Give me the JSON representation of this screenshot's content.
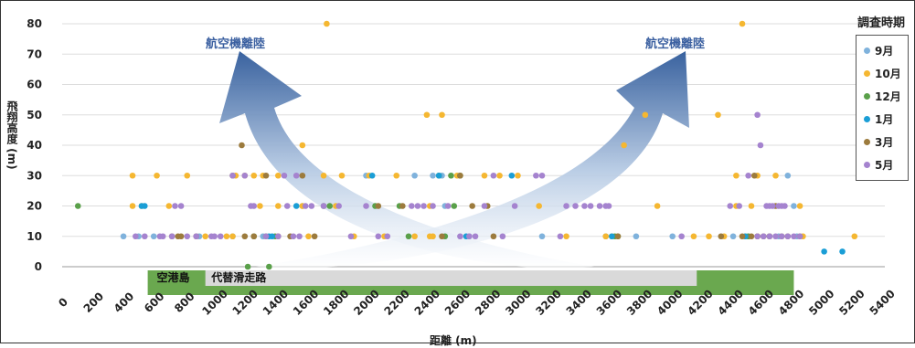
{
  "chart_data": {
    "type": "scatter",
    "title": "",
    "xlabel": "距離 (m)",
    "ylabel": "飛翔高度 (m)",
    "xlim": [
      0,
      5400
    ],
    "ylim": [
      0,
      80
    ],
    "x_ticks": [
      0,
      200,
      400,
      600,
      800,
      1000,
      1200,
      1400,
      1600,
      1800,
      2000,
      2200,
      2400,
      2600,
      2800,
      3000,
      3200,
      3400,
      3600,
      3800,
      4000,
      4200,
      4400,
      4600,
      4800,
      5000,
      5200,
      5400
    ],
    "y_ticks": [
      0,
      10,
      20,
      30,
      40,
      50,
      60,
      70,
      80
    ],
    "grid": "horizontal",
    "legend_title": "調査時期",
    "legend_position": "right",
    "annotations": {
      "arrow_left_label": "航空機離陸",
      "arrow_right_label": "航空機離陸",
      "airport_label": "空港島",
      "runway_label": "代替滑走路"
    },
    "series": [
      {
        "name": "9月",
        "color": "#7fb2dc",
        "points": [
          [
            380,
            10
          ],
          [
            480,
            10
          ],
          [
            580,
            10
          ],
          [
            880,
            10
          ],
          [
            1100,
            10
          ],
          [
            1300,
            10
          ],
          [
            1560,
            20
          ],
          [
            1980,
            30
          ],
          [
            2300,
            30
          ],
          [
            2420,
            30
          ],
          [
            2480,
            30
          ],
          [
            2500,
            20
          ],
          [
            2660,
            10
          ],
          [
            3140,
            10
          ],
          [
            3560,
            10
          ],
          [
            3760,
            10
          ],
          [
            4000,
            10
          ],
          [
            4400,
            10
          ],
          [
            4500,
            10
          ],
          [
            4760,
            30
          ],
          [
            4800,
            20
          ],
          [
            4820,
            10
          ],
          [
            4700,
            10
          ]
        ]
      },
      {
        "name": "10月",
        "color": "#f5b731",
        "points": [
          [
            440,
            30
          ],
          [
            600,
            30
          ],
          [
            800,
            30
          ],
          [
            1120,
            30
          ],
          [
            1180,
            30
          ],
          [
            1240,
            30
          ],
          [
            1300,
            30
          ],
          [
            1400,
            30
          ],
          [
            1700,
            30
          ],
          [
            1560,
            40
          ],
          [
            1720,
            80
          ],
          [
            1280,
            20
          ],
          [
            1400,
            20
          ],
          [
            1560,
            20
          ],
          [
            1780,
            20
          ],
          [
            2180,
            30
          ],
          [
            2380,
            50
          ],
          [
            2480,
            50
          ],
          [
            2400,
            20
          ],
          [
            2580,
            30
          ],
          [
            2760,
            30
          ],
          [
            2860,
            30
          ],
          [
            2980,
            30
          ],
          [
            3120,
            20
          ],
          [
            3300,
            10
          ],
          [
            3680,
            40
          ],
          [
            3820,
            50
          ],
          [
            3900,
            20
          ],
          [
            4140,
            10
          ],
          [
            4300,
            50
          ],
          [
            4460,
            80
          ],
          [
            4420,
            20
          ],
          [
            4520,
            20
          ],
          [
            4560,
            10
          ],
          [
            4680,
            30
          ],
          [
            4840,
            20
          ],
          [
            4860,
            10
          ],
          [
            5200,
            10
          ],
          [
            440,
            20
          ],
          [
            500,
            20
          ],
          [
            1100,
            10
          ],
          [
            1600,
            10
          ],
          [
            1900,
            10
          ],
          [
            2100,
            10
          ],
          [
            2300,
            10
          ],
          [
            2400,
            10
          ],
          [
            3560,
            10
          ],
          [
            3600,
            10
          ],
          [
            4240,
            10
          ],
          [
            4340,
            10
          ],
          [
            4480,
            10
          ],
          [
            4420,
            30
          ],
          [
            4560,
            30
          ],
          [
            680,
            20
          ],
          [
            920,
            10
          ],
          [
            1060,
            10
          ],
          [
            1820,
            30
          ],
          [
            2000,
            30
          ],
          [
            2420,
            10
          ]
        ]
      },
      {
        "name": "12月",
        "color": "#5aa04a",
        "points": [
          [
            80,
            20
          ],
          [
            1340,
            0
          ],
          [
            1200,
            0
          ],
          [
            1240,
            10
          ],
          [
            1320,
            10
          ],
          [
            1380,
            10
          ],
          [
            1700,
            20
          ],
          [
            1740,
            20
          ],
          [
            2040,
            20
          ],
          [
            2200,
            20
          ],
          [
            2260,
            10
          ],
          [
            2460,
            30
          ],
          [
            2540,
            30
          ],
          [
            2600,
            30
          ],
          [
            2500,
            10
          ],
          [
            2560,
            20
          ],
          [
            3620,
            10
          ],
          [
            3640,
            10
          ],
          [
            4500,
            10
          ],
          [
            4640,
            10
          ]
        ]
      },
      {
        "name": "1月",
        "color": "#1a9ed6",
        "points": [
          [
            500,
            20
          ],
          [
            520,
            20
          ],
          [
            1340,
            10
          ],
          [
            1360,
            10
          ],
          [
            1520,
            20
          ],
          [
            2020,
            30
          ],
          [
            2460,
            30
          ],
          [
            2640,
            10
          ],
          [
            2940,
            30
          ],
          [
            3600,
            10
          ],
          [
            4480,
            10
          ],
          [
            5000,
            5
          ],
          [
            5120,
            5
          ]
        ]
      },
      {
        "name": "3月",
        "color": "#9c7b3d",
        "points": [
          [
            700,
            10
          ],
          [
            740,
            10
          ],
          [
            760,
            10
          ],
          [
            860,
            10
          ],
          [
            1100,
            30
          ],
          [
            1160,
            40
          ],
          [
            1180,
            10
          ],
          [
            1240,
            10
          ],
          [
            1320,
            30
          ],
          [
            1400,
            10
          ],
          [
            1480,
            10
          ],
          [
            1560,
            30
          ],
          [
            1640,
            10
          ],
          [
            2060,
            20
          ],
          [
            2220,
            20
          ],
          [
            2480,
            10
          ],
          [
            2600,
            30
          ],
          [
            2680,
            20
          ],
          [
            2780,
            20
          ],
          [
            2820,
            10
          ],
          [
            3640,
            10
          ],
          [
            4320,
            10
          ],
          [
            4460,
            10
          ],
          [
            4520,
            10
          ],
          [
            4560,
            10
          ],
          [
            4600,
            10
          ],
          [
            4640,
            10
          ],
          [
            4720,
            10
          ],
          [
            4760,
            10
          ],
          [
            4840,
            10
          ],
          [
            4540,
            30
          ],
          [
            4680,
            20
          ]
        ]
      },
      {
        "name": "5月",
        "color": "#a583cf",
        "points": [
          [
            460,
            10
          ],
          [
            520,
            10
          ],
          [
            620,
            10
          ],
          [
            700,
            10
          ],
          [
            800,
            10
          ],
          [
            860,
            10
          ],
          [
            960,
            10
          ],
          [
            980,
            10
          ],
          [
            1020,
            10
          ],
          [
            1100,
            30
          ],
          [
            1180,
            30
          ],
          [
            1220,
            20
          ],
          [
            1240,
            20
          ],
          [
            1320,
            10
          ],
          [
            1400,
            10
          ],
          [
            1440,
            30
          ],
          [
            1460,
            20
          ],
          [
            1500,
            10
          ],
          [
            1520,
            30
          ],
          [
            1540,
            10
          ],
          [
            1580,
            20
          ],
          [
            1620,
            20
          ],
          [
            1700,
            20
          ],
          [
            1800,
            20
          ],
          [
            1880,
            10
          ],
          [
            1980,
            20
          ],
          [
            2060,
            10
          ],
          [
            2120,
            10
          ],
          [
            2280,
            20
          ],
          [
            2320,
            20
          ],
          [
            2360,
            20
          ],
          [
            2420,
            20
          ],
          [
            2520,
            20
          ],
          [
            2600,
            10
          ],
          [
            2660,
            10
          ],
          [
            2700,
            10
          ],
          [
            2760,
            20
          ],
          [
            2820,
            30
          ],
          [
            2880,
            10
          ],
          [
            2960,
            20
          ],
          [
            3100,
            30
          ],
          [
            3140,
            30
          ],
          [
            3300,
            20
          ],
          [
            3360,
            20
          ],
          [
            3420,
            20
          ],
          [
            3460,
            20
          ],
          [
            3520,
            20
          ],
          [
            3560,
            20
          ],
          [
            3580,
            20
          ],
          [
            4060,
            10
          ],
          [
            4380,
            20
          ],
          [
            4440,
            20
          ],
          [
            4500,
            30
          ],
          [
            4560,
            50
          ],
          [
            4580,
            40
          ],
          [
            4620,
            20
          ],
          [
            4640,
            20
          ],
          [
            4660,
            20
          ],
          [
            4700,
            20
          ],
          [
            4720,
            20
          ],
          [
            4740,
            20
          ],
          [
            4560,
            10
          ],
          [
            4600,
            10
          ],
          [
            4640,
            10
          ],
          [
            4680,
            10
          ],
          [
            4720,
            10
          ],
          [
            4760,
            10
          ],
          [
            4800,
            10
          ],
          [
            4840,
            10
          ],
          [
            3260,
            10
          ],
          [
            640,
            10
          ],
          [
            720,
            20
          ],
          [
            760,
            20
          ]
        ]
      }
    ]
  }
}
